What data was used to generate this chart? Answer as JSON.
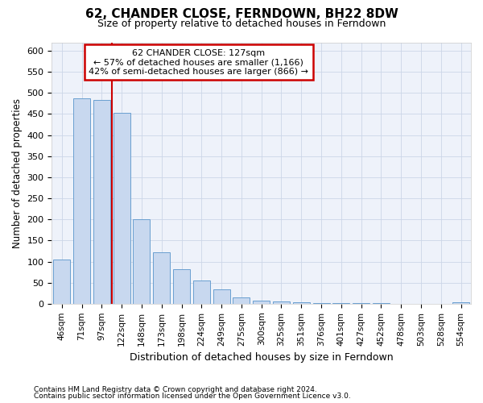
{
  "title": "62, CHANDER CLOSE, FERNDOWN, BH22 8DW",
  "subtitle": "Size of property relative to detached houses in Ferndown",
  "xlabel": "Distribution of detached houses by size in Ferndown",
  "ylabel": "Number of detached properties",
  "categories": [
    "46sqm",
    "71sqm",
    "97sqm",
    "122sqm",
    "148sqm",
    "173sqm",
    "198sqm",
    "224sqm",
    "249sqm",
    "275sqm",
    "300sqm",
    "325sqm",
    "351sqm",
    "376sqm",
    "401sqm",
    "427sqm",
    "452sqm",
    "478sqm",
    "503sqm",
    "528sqm",
    "554sqm"
  ],
  "values": [
    105,
    488,
    483,
    452,
    200,
    122,
    82,
    55,
    35,
    15,
    8,
    5,
    3,
    2,
    1,
    1,
    1,
    0,
    0,
    0,
    3
  ],
  "bar_color": "#c8d8ef",
  "bar_edge_color": "#6a9fd0",
  "red_line_x": 2.5,
  "annotation_line1": "62 CHANDER CLOSE: 127sqm",
  "annotation_line2": "← 57% of detached houses are smaller (1,166)",
  "annotation_line3": "42% of semi-detached houses are larger (866) →",
  "annotation_box_color": "#ffffff",
  "annotation_box_edge": "#cc0000",
  "red_line_color": "#cc0000",
  "footer1": "Contains HM Land Registry data © Crown copyright and database right 2024.",
  "footer2": "Contains public sector information licensed under the Open Government Licence v3.0.",
  "ylim": [
    0,
    620
  ],
  "yticks": [
    0,
    50,
    100,
    150,
    200,
    250,
    300,
    350,
    400,
    450,
    500,
    550,
    600
  ],
  "figsize": [
    6.0,
    5.0
  ],
  "dpi": 100
}
